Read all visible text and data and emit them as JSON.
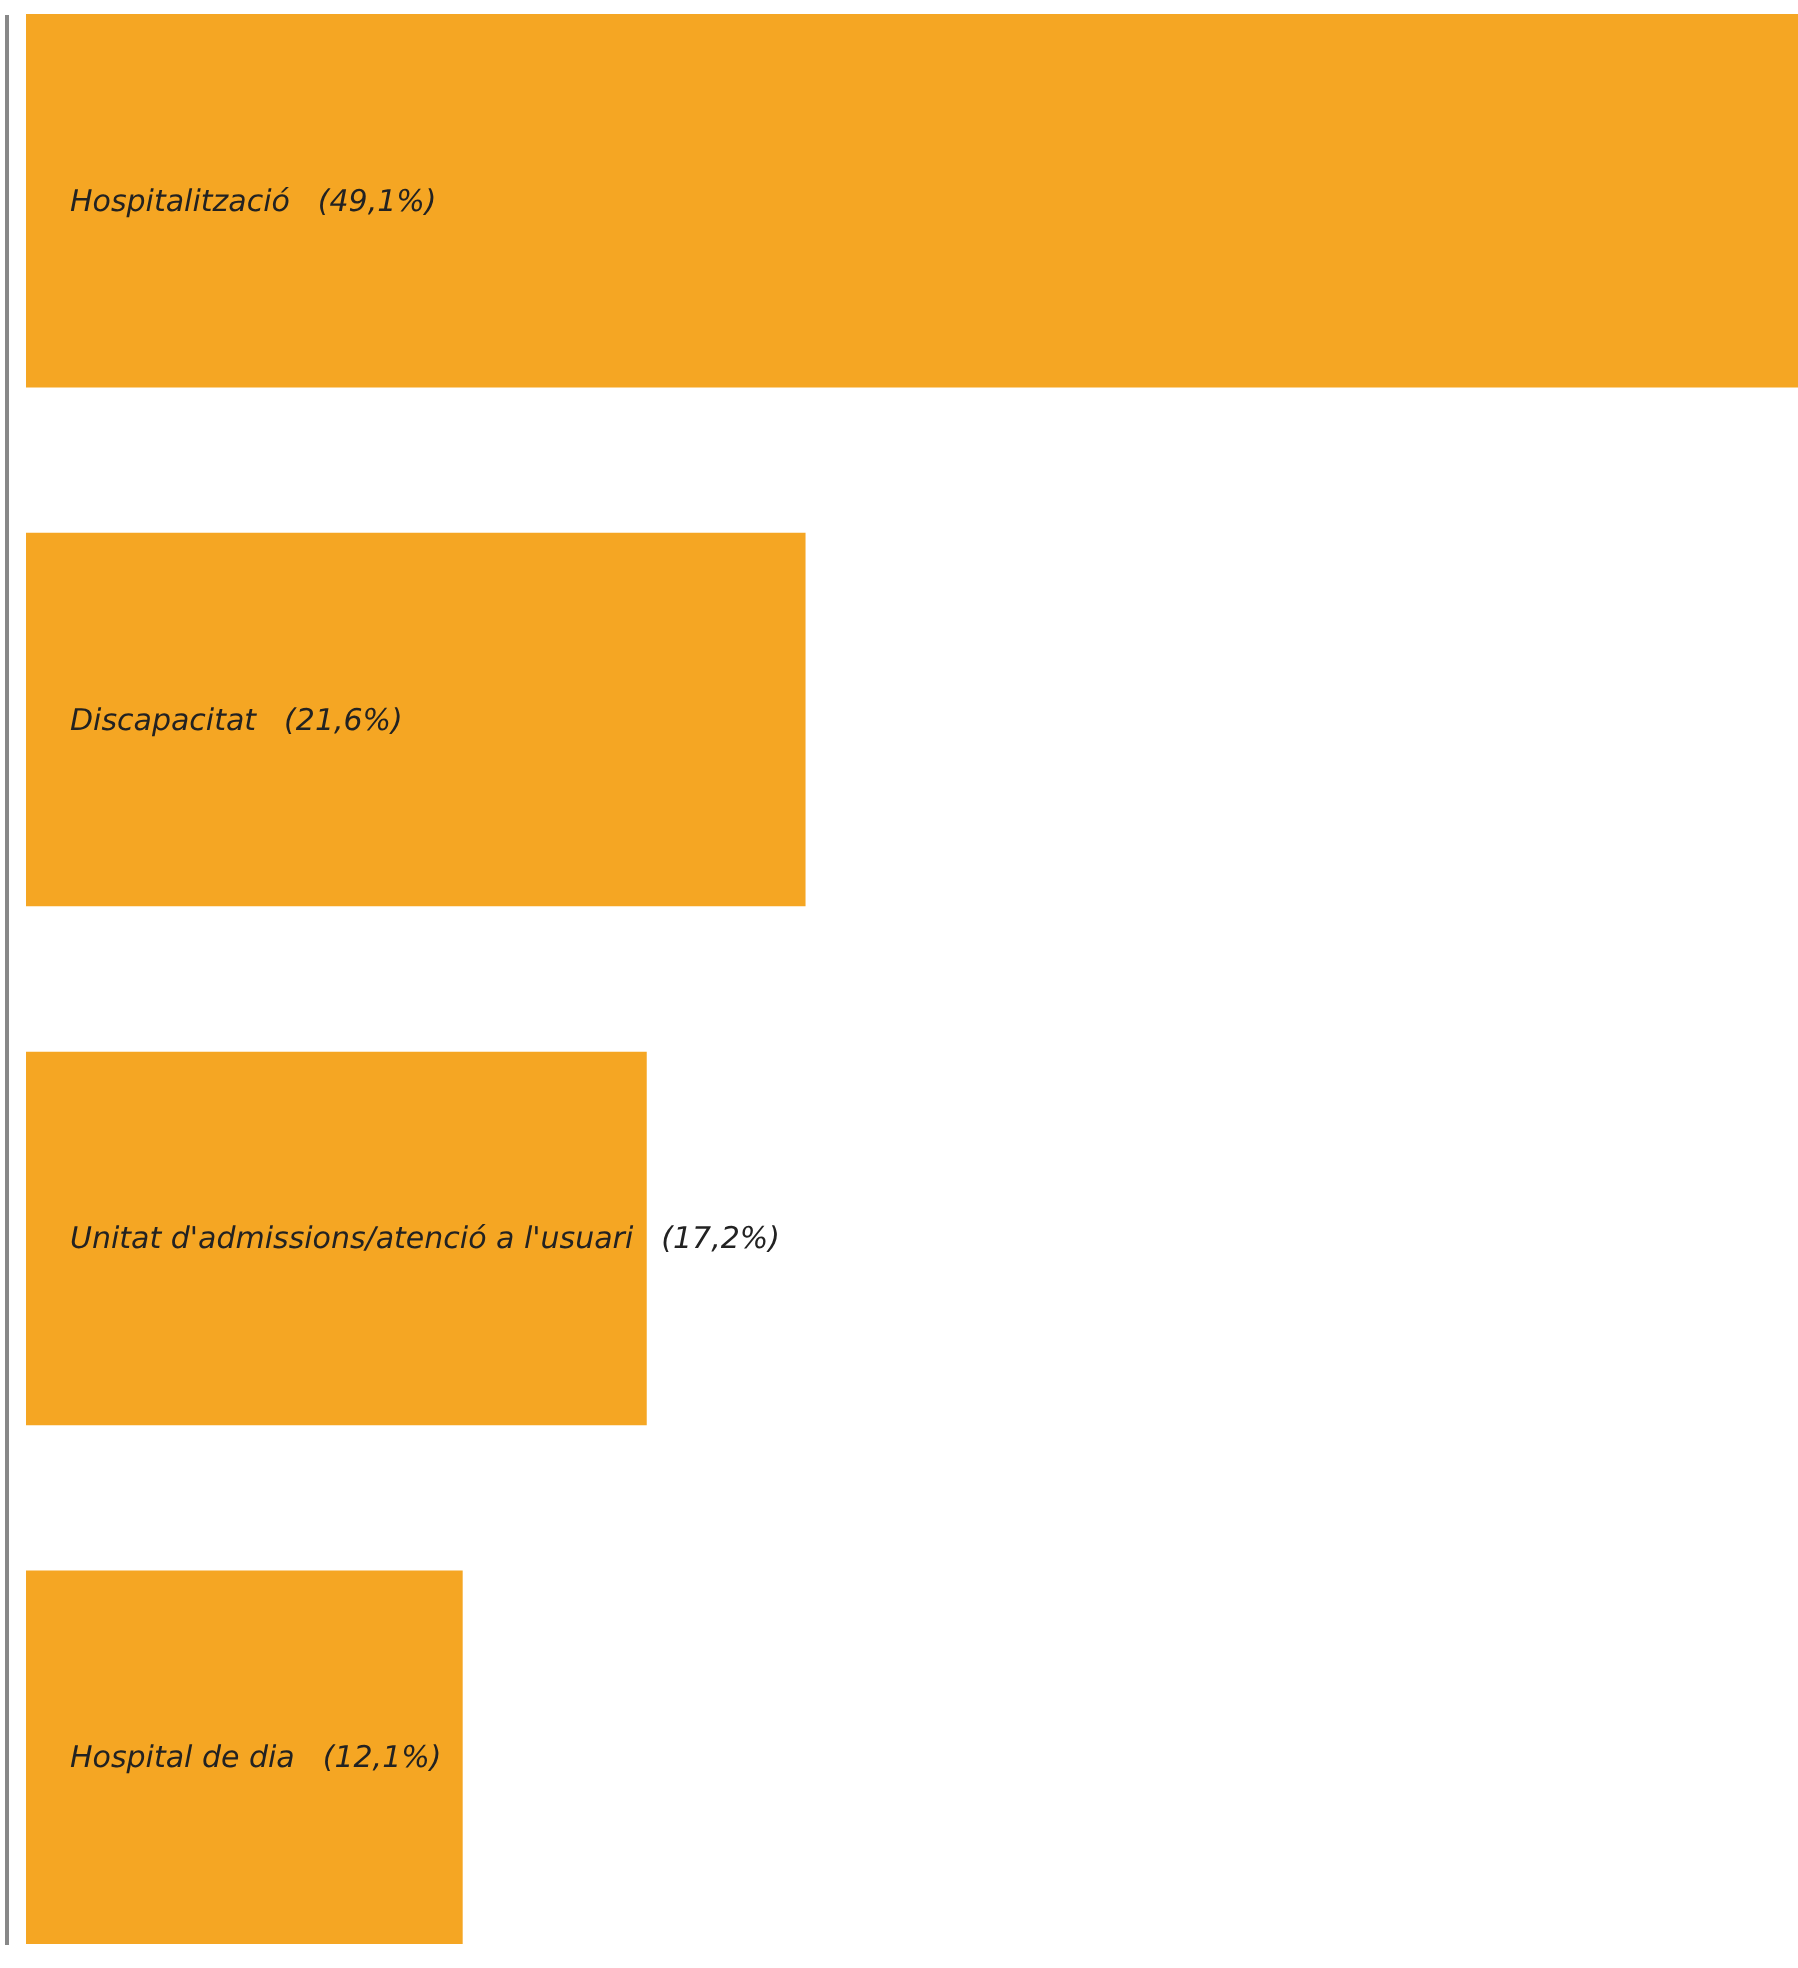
{
  "chart_data": {
    "type": "bar",
    "orientation": "horizontal",
    "categories": [
      "Hospitalització",
      "Discapacitat",
      "Unitat d'admissions/atenció a l'usuari",
      "Hospital de dia"
    ],
    "values": [
      49.1,
      21.6,
      17.2,
      12.1
    ],
    "value_labels": [
      "(49,1%)",
      "(21,6%)",
      "(17,2%)",
      "(12,1%)"
    ],
    "color": "#f5a623",
    "tick_labels": false
  }
}
